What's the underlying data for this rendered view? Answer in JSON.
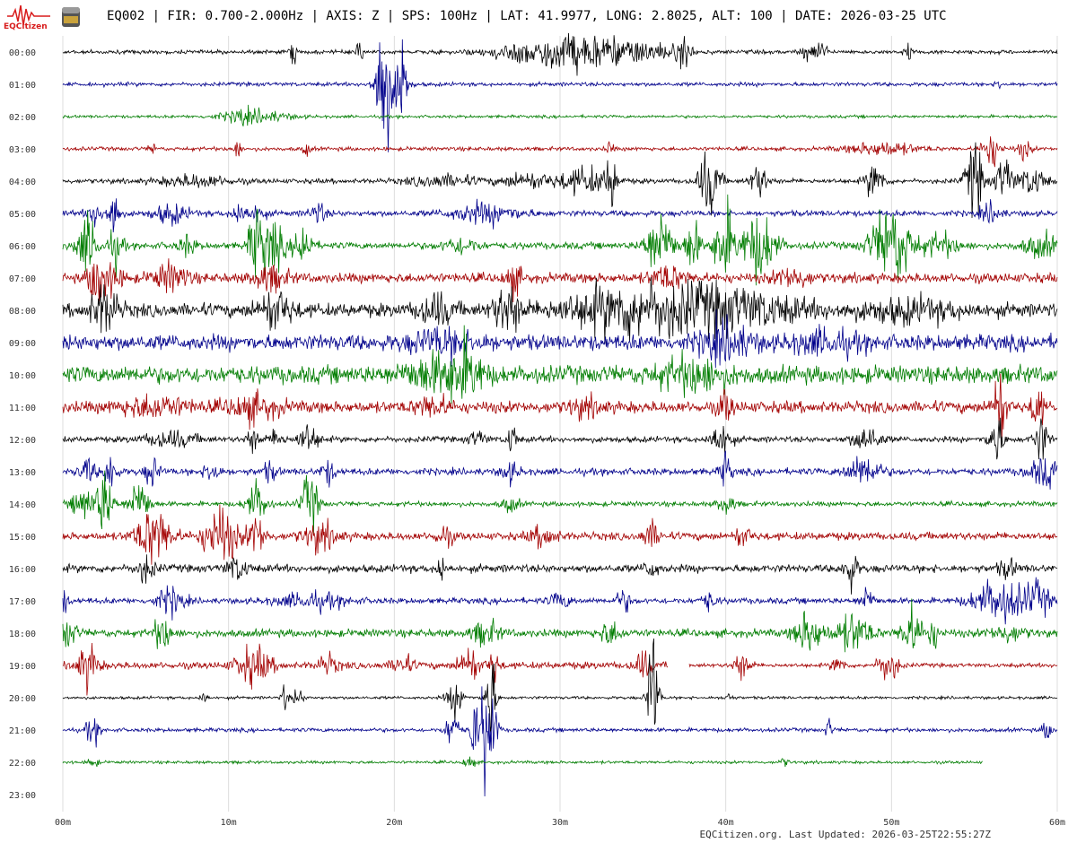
{
  "header": {
    "logo_text": "EQCitizen",
    "title": "EQ002 | FIR: 0.700-2.000Hz | AXIS: Z | SPS: 100Hz | LAT: 41.9977, LONG: 2.8025, ALT: 100 | DATE: 2026-03-25 UTC"
  },
  "footer": {
    "updated": "EQCitizen.org. Last Updated: 2026-03-25T22:55:27Z"
  },
  "colors": {
    "cycle": [
      "#000000",
      "#00008b",
      "#007d00",
      "#a30000"
    ],
    "grid": "#dddddd"
  },
  "chart_data": {
    "type": "heliplot",
    "row_labels": [
      "00:00",
      "01:00",
      "02:00",
      "03:00",
      "04:00",
      "05:00",
      "06:00",
      "07:00",
      "08:00",
      "09:00",
      "10:00",
      "11:00",
      "12:00",
      "13:00",
      "14:00",
      "15:00",
      "16:00",
      "17:00",
      "18:00",
      "19:00",
      "20:00",
      "21:00",
      "22:00",
      "23:00"
    ],
    "x_ticks": [
      "00m",
      "10m",
      "20m",
      "30m",
      "40m",
      "50m",
      "60m"
    ],
    "xlim": [
      0,
      60
    ],
    "rows": [
      {
        "noise": 2,
        "end": 60,
        "events": [
          [
            13.9,
            12,
            0.2
          ],
          [
            17.9,
            14,
            0.2
          ],
          [
            29,
            10,
            3
          ],
          [
            31,
            8,
            3
          ],
          [
            33,
            6,
            3
          ],
          [
            35.5,
            6,
            2
          ],
          [
            37.5,
            14,
            0.4
          ],
          [
            45,
            8,
            0.5
          ],
          [
            45.8,
            12,
            0.3
          ],
          [
            51,
            8,
            0.3
          ]
        ]
      },
      {
        "noise": 2,
        "end": 60,
        "events": [
          [
            19.3,
            90,
            0.3
          ],
          [
            19.7,
            30,
            0.8
          ],
          [
            20.5,
            60,
            0.2
          ],
          [
            56.5,
            6,
            0.2
          ]
        ]
      },
      {
        "noise": 1.5,
        "end": 60,
        "events": [
          [
            10.7,
            8,
            0.2
          ],
          [
            11.5,
            7,
            2.0
          ]
        ]
      },
      {
        "noise": 2,
        "end": 60,
        "events": [
          [
            5.4,
            6,
            0.2
          ],
          [
            10.5,
            12,
            0.2
          ],
          [
            14.7,
            8,
            0.2
          ],
          [
            33.0,
            8,
            0.2
          ],
          [
            49.5,
            7,
            2.0
          ],
          [
            56.0,
            20,
            0.5
          ],
          [
            58.0,
            10,
            0.4
          ]
        ]
      },
      {
        "noise": 2.5,
        "end": 60,
        "events": [
          [
            8,
            6,
            2
          ],
          [
            23,
            6,
            2
          ],
          [
            28,
            8,
            1.5
          ],
          [
            31.5,
            14,
            1.5
          ],
          [
            33.1,
            28,
            0.3
          ],
          [
            39,
            35,
            0.6
          ],
          [
            42,
            18,
            0.5
          ],
          [
            49,
            22,
            0.5
          ],
          [
            55,
            40,
            0.5
          ],
          [
            56.8,
            25,
            0.5
          ],
          [
            58.5,
            15,
            0.8
          ]
        ]
      },
      {
        "noise": 3,
        "end": 60,
        "events": [
          [
            2,
            12,
            0.5
          ],
          [
            3.1,
            30,
            0.3
          ],
          [
            6.5,
            10,
            1.0
          ],
          [
            10.6,
            12,
            0.4
          ],
          [
            11.7,
            9,
            0.5
          ],
          [
            15.4,
            10,
            0.5
          ],
          [
            25.5,
            10,
            2.0
          ],
          [
            56.0,
            10,
            0.6
          ]
        ]
      },
      {
        "noise": 3.5,
        "end": 60,
        "events": [
          [
            1.5,
            30,
            0.6
          ],
          [
            3.2,
            20,
            0.4
          ],
          [
            7.5,
            10,
            0.5
          ],
          [
            11.6,
            30,
            0.4
          ],
          [
            12.5,
            28,
            0.8
          ],
          [
            14.5,
            25,
            0.5
          ],
          [
            24,
            8,
            1.0
          ],
          [
            36,
            35,
            0.8
          ],
          [
            38,
            30,
            0.4
          ],
          [
            39.9,
            40,
            0.6
          ],
          [
            42,
            35,
            1.0
          ],
          [
            50.0,
            42,
            1.2
          ],
          [
            53.0,
            12,
            1.0
          ],
          [
            59,
            12,
            1.0
          ]
        ]
      },
      {
        "noise": 5,
        "end": 60,
        "events": [
          [
            2,
            30,
            0.4
          ],
          [
            2.8,
            14,
            0.8
          ],
          [
            6.5,
            14,
            1.0
          ],
          [
            12.5,
            12,
            1.0
          ],
          [
            27.2,
            14,
            0.5
          ],
          [
            36.5,
            12,
            1.0
          ],
          [
            44,
            10,
            1.0
          ]
        ]
      },
      {
        "noise": 7,
        "end": 60,
        "events": [
          [
            2.5,
            25,
            0.8
          ],
          [
            12.8,
            20,
            1.0
          ],
          [
            22.5,
            15,
            1.0
          ],
          [
            26.8,
            24,
            0.8
          ],
          [
            33,
            14,
            3.0
          ],
          [
            37,
            18,
            5.0
          ],
          [
            41,
            10,
            4.0
          ],
          [
            51,
            10,
            3.0
          ]
        ]
      },
      {
        "noise": 8,
        "end": 60,
        "events": [
          [
            23,
            12,
            2
          ],
          [
            40,
            18,
            1.5
          ],
          [
            46,
            10,
            2
          ]
        ]
      },
      {
        "noise": 9,
        "end": 60,
        "events": [
          [
            22.5,
            16,
            2
          ],
          [
            24.3,
            22,
            1.0
          ],
          [
            38,
            16,
            2.0
          ]
        ]
      },
      {
        "noise": 6,
        "end": 60,
        "events": [
          [
            5.5,
            10,
            2
          ],
          [
            11.5,
            12,
            1.5
          ],
          [
            22.3,
            10,
            1.0
          ],
          [
            31.5,
            8,
            1.0
          ],
          [
            40.0,
            16,
            0.4
          ],
          [
            56.5,
            40,
            0.4
          ],
          [
            58.8,
            30,
            0.3
          ]
        ]
      },
      {
        "noise": 3,
        "end": 60,
        "events": [
          [
            6.5,
            8,
            1.5
          ],
          [
            11.5,
            12,
            0.4
          ],
          [
            12.9,
            10,
            0.4
          ],
          [
            14.8,
            16,
            0.6
          ],
          [
            25,
            8,
            0.5
          ],
          [
            27.1,
            16,
            0.3
          ],
          [
            39.7,
            18,
            0.6
          ],
          [
            48.5,
            14,
            0.8
          ],
          [
            56.3,
            30,
            0.4
          ],
          [
            59,
            25,
            0.4
          ]
        ]
      },
      {
        "noise": 3.5,
        "end": 60,
        "events": [
          [
            1.5,
            12,
            0.5
          ],
          [
            2.9,
            30,
            0.3
          ],
          [
            5.4,
            16,
            0.4
          ],
          [
            9.0,
            14,
            0.4
          ],
          [
            12.5,
            10,
            0.4
          ],
          [
            16.0,
            12,
            0.4
          ],
          [
            27,
            10,
            0.5
          ],
          [
            40.0,
            20,
            0.3
          ],
          [
            48.3,
            16,
            1.0
          ],
          [
            59.3,
            14,
            1.0
          ]
        ]
      },
      {
        "noise": 2.5,
        "end": 60,
        "events": [
          [
            1.2,
            18,
            0.6
          ],
          [
            2.5,
            35,
            0.5
          ],
          [
            4.6,
            25,
            0.6
          ],
          [
            11.7,
            22,
            0.6
          ],
          [
            14.9,
            30,
            0.5
          ],
          [
            27,
            8,
            0.5
          ],
          [
            40,
            10,
            0.5
          ]
        ]
      },
      {
        "noise": 4,
        "end": 60,
        "events": [
          [
            5.5,
            30,
            1.0
          ],
          [
            9.5,
            30,
            1.0
          ],
          [
            11.7,
            22,
            0.5
          ],
          [
            15.5,
            14,
            1.0
          ],
          [
            23,
            10,
            0.5
          ],
          [
            29,
            10,
            0.8
          ],
          [
            35.5,
            14,
            0.5
          ],
          [
            41.0,
            10,
            0.5
          ]
        ]
      },
      {
        "noise": 4,
        "end": 60,
        "events": [
          [
            5,
            14,
            0.5
          ],
          [
            10.5,
            12,
            0.6
          ],
          [
            22.8,
            20,
            0.2
          ],
          [
            35.5,
            10,
            0.4
          ],
          [
            47.5,
            22,
            0.4
          ],
          [
            57.0,
            10,
            0.5
          ]
        ]
      },
      {
        "noise": 3,
        "end": 60,
        "events": [
          [
            0,
            12,
            0.3
          ],
          [
            6.5,
            14,
            0.8
          ],
          [
            15,
            8,
            2.0
          ],
          [
            30,
            8,
            0.6
          ],
          [
            33.8,
            12,
            0.4
          ],
          [
            39.0,
            10,
            0.4
          ],
          [
            48.5,
            14,
            0.4
          ],
          [
            56.5,
            22,
            1.5
          ],
          [
            58.8,
            16,
            0.8
          ]
        ]
      },
      {
        "noise": 4,
        "end": 60,
        "events": [
          [
            0.3,
            16,
            0.5
          ],
          [
            6,
            18,
            0.5
          ],
          [
            25.5,
            12,
            0.8
          ],
          [
            33,
            12,
            0.6
          ],
          [
            45,
            22,
            0.8
          ],
          [
            47.7,
            20,
            1.0
          ],
          [
            51.2,
            26,
            0.6
          ],
          [
            52.5,
            14,
            0.4
          ],
          [
            57,
            8,
            1.0
          ]
        ]
      },
      {
        "noise": 3.5,
        "end": 36.5,
        "events": [
          [
            1.5,
            22,
            0.6
          ],
          [
            11.5,
            20,
            1.0
          ],
          [
            16.0,
            10,
            0.6
          ],
          [
            20.5,
            10,
            0.6
          ],
          [
            24.5,
            20,
            0.6
          ],
          [
            26,
            18,
            0.3
          ],
          [
            35,
            14,
            0.5
          ],
          [
            41.0,
            14,
            0.5
          ],
          [
            46.8,
            10,
            0.4
          ],
          [
            49.8,
            18,
            0.6
          ]
        ],
        "gap": [
          36.5,
          37.8
        ]
      },
      {
        "noise": 1.5,
        "end": 60,
        "events": [
          [
            8.5,
            8,
            0.2
          ],
          [
            13.4,
            14,
            0.2
          ],
          [
            14.2,
            10,
            0.3
          ],
          [
            23.7,
            18,
            0.5
          ],
          [
            25.8,
            55,
            0.3
          ],
          [
            35.6,
            80,
            0.3
          ],
          [
            40.2,
            8,
            0.2
          ]
        ]
      },
      {
        "noise": 2,
        "end": 60,
        "events": [
          [
            1.8,
            14,
            0.4
          ],
          [
            23.5,
            20,
            0.4
          ],
          [
            24.8,
            50,
            0.2
          ],
          [
            25.4,
            60,
            0.2
          ],
          [
            25.9,
            50,
            0.3
          ],
          [
            46.2,
            12,
            0.2
          ],
          [
            59.4,
            10,
            0.3
          ]
        ]
      },
      {
        "noise": 1.5,
        "end": 55.5,
        "events": [
          [
            1.8,
            6,
            0.3
          ],
          [
            24.5,
            8,
            0.3
          ],
          [
            43.5,
            4,
            0.3
          ]
        ]
      },
      {
        "noise": 0,
        "end": 0,
        "events": []
      }
    ]
  }
}
